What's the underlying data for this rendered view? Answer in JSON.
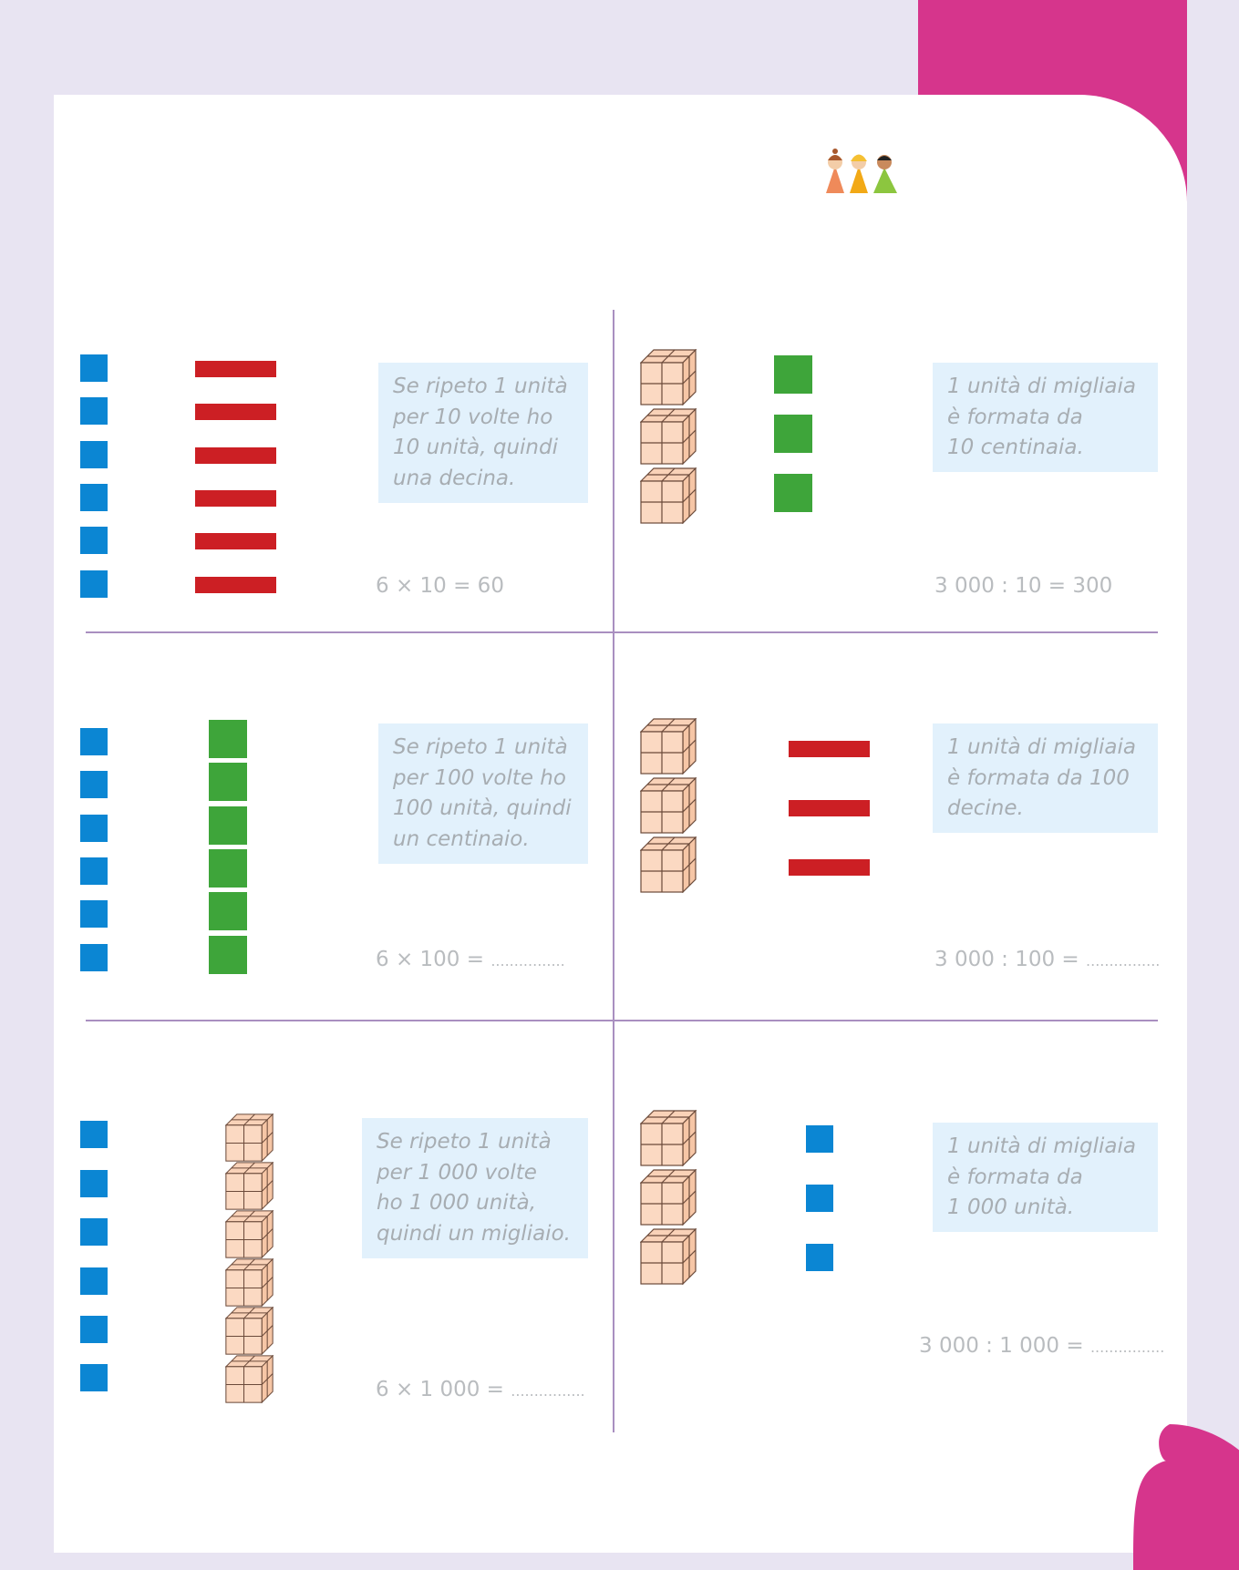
{
  "exercises": [
    {
      "note_lines": [
        "Se ripeto 1 unità",
        "per 10 volte ho",
        "10 unità, quindi",
        "una decina."
      ],
      "equation": "6 × 10 = 60"
    },
    {
      "note_lines": [
        "1 unità di migliaia",
        "è formata da",
        "10 centinaia."
      ],
      "equation": "3 000 : 10 = 300"
    },
    {
      "note_lines": [
        "Se ripeto 1 unità",
        "per 100 volte ho",
        "100 unità, quindi",
        "un centinaio."
      ],
      "equation": "6 × 100 = ",
      "blank": "................"
    },
    {
      "note_lines": [
        "1 unità di migliaia",
        "è formata da 100",
        "decine."
      ],
      "equation": "3 000 : 100 = ",
      "blank": "................"
    },
    {
      "note_lines": [
        "Se ripeto 1 unità",
        "per 1 000 volte",
        "ho 1 000 unità,",
        "quindi un migliaio."
      ],
      "equation": "6 × 1 000 = ",
      "blank": "................"
    },
    {
      "note_lines": [
        "1 unità di migliaia",
        "è formata da",
        "1 000 unità."
      ],
      "equation": "3 000 : 1 000 = ",
      "blank": "................"
    }
  ],
  "colors": {
    "background": "#e8e4f2",
    "accent_magenta": "#d6358c",
    "unit_blue": "#0b86d3",
    "ten_red": "#cc1f24",
    "hundred_green": "#3ea53a",
    "thousand_peach": "#f9d2b8",
    "note_bg": "#e2f1fc",
    "divider": "#a98fc0"
  },
  "icons": {
    "kids": "three-children-illustration",
    "unit": "unit-square-icon",
    "ten": "ten-rod-icon",
    "hundred": "hundred-flat-icon",
    "thousand": "thousand-cube-icon"
  }
}
